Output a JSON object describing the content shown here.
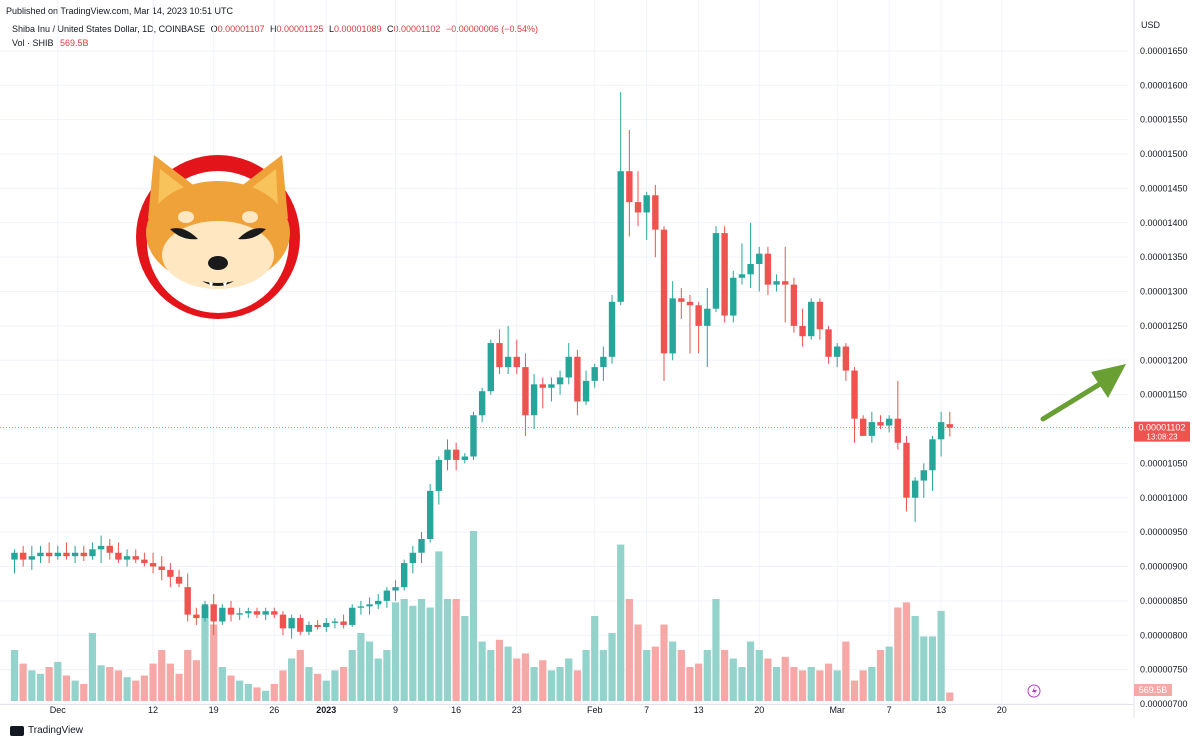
{
  "header": {
    "published": "Published on TradingView.com, Mar 14, 2023 10:51 UTC",
    "symbol": "Shiba Inu / United States Dollar, 1D, COINBASE",
    "o_label": "O",
    "o_value": "0.00001107",
    "h_label": "H",
    "h_value": "0.00001125",
    "l_label": "L",
    "l_value": "0.00001089",
    "c_label": "C",
    "c_value": "0.00001102",
    "change": "−0.00000006 (−0.54%)",
    "vol_label": "Vol · SHIB",
    "vol_value": "569.5B",
    "currency": "USD"
  },
  "footer": {
    "brand": "TradingView"
  },
  "price_tag": {
    "value": "0.00001102",
    "countdown": "13:08:23"
  },
  "vol_tag": {
    "value": "569.5B"
  },
  "colors": {
    "up": "#26a69a",
    "down": "#ef5350",
    "vol_up": "#94d3cc",
    "vol_down": "#f5a8a6",
    "arrow": "#6a9f34"
  },
  "logo": {
    "name": "shiba-inu-logo"
  },
  "chart_data": {
    "type": "candlestick",
    "ylim": [
      7e-06,
      1.66e-05
    ],
    "y_ticks": [
      "0.00000700",
      "0.00000750",
      "0.00000800",
      "0.00000850",
      "0.00000900",
      "0.00000950",
      "0.00001000",
      "0.00001050",
      "0.00001100",
      "0.00001150",
      "0.00001200",
      "0.00001250",
      "0.00001300",
      "0.00001350",
      "0.00001400",
      "0.00001450",
      "0.00001500",
      "0.00001550",
      "0.00001600",
      "0.00001650"
    ],
    "x_ticks": [
      {
        "label": "Dec",
        "i": 5
      },
      {
        "label": "12",
        "i": 16
      },
      {
        "label": "19",
        "i": 23
      },
      {
        "label": "26",
        "i": 30
      },
      {
        "label": "2023",
        "i": 36
      },
      {
        "label": "9",
        "i": 44
      },
      {
        "label": "16",
        "i": 51
      },
      {
        "label": "23",
        "i": 58
      },
      {
        "label": "Feb",
        "i": 67
      },
      {
        "label": "7",
        "i": 73
      },
      {
        "label": "13",
        "i": 79
      },
      {
        "label": "20",
        "i": 86
      },
      {
        "label": "Mar",
        "i": 95
      },
      {
        "label": "7",
        "i": 101
      },
      {
        "label": "13",
        "i": 107
      },
      {
        "label": "20",
        "i": 114
      }
    ],
    "candles": [
      [
        9.1e-06,
        9.25e-06,
        8.9e-06,
        9.2e-06,
        0.3
      ],
      [
        9.2e-06,
        9.3e-06,
        9e-06,
        9.1e-06,
        0.22
      ],
      [
        9.1e-06,
        9.3e-06,
        8.95e-06,
        9.15e-06,
        0.18
      ],
      [
        9.15e-06,
        9.3e-06,
        9.05e-06,
        9.2e-06,
        0.16
      ],
      [
        9.2e-06,
        9.35e-06,
        9.05e-06,
        9.15e-06,
        0.2
      ],
      [
        9.15e-06,
        9.3e-06,
        9.1e-06,
        9.2e-06,
        0.23
      ],
      [
        9.2e-06,
        9.35e-06,
        9.1e-06,
        9.15e-06,
        0.15
      ],
      [
        9.15e-06,
        9.3e-06,
        9.05e-06,
        9.2e-06,
        0.12
      ],
      [
        9.2e-06,
        9.3e-06,
        9.08e-06,
        9.15e-06,
        0.1
      ],
      [
        9.15e-06,
        9.35e-06,
        9.1e-06,
        9.25e-06,
        0.4
      ],
      [
        9.25e-06,
        9.45e-06,
        9.05e-06,
        9.3e-06,
        0.21
      ],
      [
        9.3e-06,
        9.4e-06,
        9.1e-06,
        9.2e-06,
        0.2
      ],
      [
        9.2e-06,
        9.35e-06,
        9.05e-06,
        9.1e-06,
        0.18
      ],
      [
        9.1e-06,
        9.25e-06,
        9e-06,
        9.15e-06,
        0.14
      ],
      [
        9.15e-06,
        9.25e-06,
        9.05e-06,
        9.1e-06,
        0.12
      ],
      [
        9.1e-06,
        9.2e-06,
        9e-06,
        9.05e-06,
        0.15
      ],
      [
        9.05e-06,
        9.2e-06,
        8.9e-06,
        9e-06,
        0.22
      ],
      [
        9e-06,
        9.15e-06,
        8.8e-06,
        8.95e-06,
        0.3
      ],
      [
        8.95e-06,
        9.05e-06,
        8.7e-06,
        8.85e-06,
        0.22
      ],
      [
        8.85e-06,
        8.95e-06,
        8.7e-06,
        8.75e-06,
        0.16
      ],
      [
        8.7e-06,
        8.9e-06,
        8.2e-06,
        8.3e-06,
        0.3
      ],
      [
        8.3e-06,
        8.4e-06,
        8.15e-06,
        8.25e-06,
        0.24
      ],
      [
        8.25e-06,
        8.5e-06,
        8.2e-06,
        8.45e-06,
        0.56
      ],
      [
        8.45e-06,
        8.6e-06,
        8e-06,
        8.2e-06,
        0.45
      ],
      [
        8.2e-06,
        8.45e-06,
        8.15e-06,
        8.4e-06,
        0.2
      ],
      [
        8.4e-06,
        8.5e-06,
        8.2e-06,
        8.3e-06,
        0.15
      ],
      [
        8.3e-06,
        8.4e-06,
        8.22e-06,
        8.32e-06,
        0.12
      ],
      [
        8.32e-06,
        8.4e-06,
        8.25e-06,
        8.35e-06,
        0.1
      ],
      [
        8.35e-06,
        8.4e-06,
        8.25e-06,
        8.3e-06,
        0.08
      ],
      [
        8.3e-06,
        8.4e-06,
        8.22e-06,
        8.35e-06,
        0.06
      ],
      [
        8.35e-06,
        8.4e-06,
        8.25e-06,
        8.3e-06,
        0.1
      ],
      [
        8.3e-06,
        8.35e-06,
        8e-06,
        8.1e-06,
        0.18
      ],
      [
        8.1e-06,
        8.3e-06,
        7.95e-06,
        8.25e-06,
        0.25
      ],
      [
        8.25e-06,
        8.3e-06,
        8e-06,
        8.05e-06,
        0.3
      ],
      [
        8.05e-06,
        8.2e-06,
        8e-06,
        8.15e-06,
        0.2
      ],
      [
        8.15e-06,
        8.22e-06,
        8.08e-06,
        8.12e-06,
        0.16
      ],
      [
        8.12e-06,
        8.25e-06,
        8.05e-06,
        8.18e-06,
        0.12
      ],
      [
        8.18e-06,
        8.25e-06,
        8.1e-06,
        8.2e-06,
        0.18
      ],
      [
        8.2e-06,
        8.3e-06,
        8.1e-06,
        8.15e-06,
        0.2
      ],
      [
        8.15e-06,
        8.45e-06,
        8.12e-06,
        8.4e-06,
        0.3
      ],
      [
        8.4e-06,
        8.5e-06,
        8.3e-06,
        8.42e-06,
        0.4
      ],
      [
        8.42e-06,
        8.55e-06,
        8.3e-06,
        8.45e-06,
        0.35
      ],
      [
        8.45e-06,
        8.6e-06,
        8.38e-06,
        8.5e-06,
        0.25
      ],
      [
        8.5e-06,
        8.7e-06,
        8.4e-06,
        8.65e-06,
        0.3
      ],
      [
        8.65e-06,
        8.8e-06,
        8.5e-06,
        8.7e-06,
        0.58
      ],
      [
        8.7e-06,
        9.1e-06,
        8.65e-06,
        9.05e-06,
        0.6
      ],
      [
        9.05e-06,
        9.3e-06,
        8.9e-06,
        9.2e-06,
        0.56
      ],
      [
        9.2e-06,
        9.5e-06,
        9.05e-06,
        9.4e-06,
        0.6
      ],
      [
        9.4e-06,
        1.02e-05,
        9.35e-06,
        1.01e-05,
        0.55
      ],
      [
        1.01e-05,
        1.06e-05,
        9.9e-06,
        1.055e-05,
        0.88
      ],
      [
        1.055e-05,
        1.085e-05,
        1.04e-05,
        1.07e-05,
        0.6
      ],
      [
        1.07e-05,
        1.08e-05,
        1.04e-05,
        1.055e-05,
        0.6
      ],
      [
        1.055e-05,
        1.065e-05,
        1.05e-05,
        1.06e-05,
        0.5
      ],
      [
        1.06e-05,
        1.125e-05,
        1.055e-05,
        1.12e-05,
        1.0
      ],
      [
        1.12e-05,
        1.16e-05,
        1.11e-05,
        1.155e-05,
        0.35
      ],
      [
        1.155e-05,
        1.23e-05,
        1.15e-05,
        1.225e-05,
        0.3
      ],
      [
        1.225e-05,
        1.245e-05,
        1.18e-05,
        1.19e-05,
        0.36
      ],
      [
        1.19e-05,
        1.25e-05,
        1.18e-05,
        1.205e-05,
        0.32
      ],
      [
        1.205e-05,
        1.23e-05,
        1.18e-05,
        1.19e-05,
        0.25
      ],
      [
        1.19e-05,
        1.21e-05,
        1.09e-05,
        1.12e-05,
        0.28
      ],
      [
        1.12e-05,
        1.18e-05,
        1.1e-05,
        1.165e-05,
        0.2
      ],
      [
        1.165e-05,
        1.175e-05,
        1.13e-05,
        1.16e-05,
        0.24
      ],
      [
        1.16e-05,
        1.175e-05,
        1.14e-05,
        1.165e-05,
        0.18
      ],
      [
        1.165e-05,
        1.185e-05,
        1.15e-05,
        1.175e-05,
        0.2
      ],
      [
        1.175e-05,
        1.225e-05,
        1.165e-05,
        1.205e-05,
        0.25
      ],
      [
        1.205e-05,
        1.215e-05,
        1.12e-05,
        1.14e-05,
        0.18
      ],
      [
        1.14e-05,
        1.185e-05,
        1.135e-05,
        1.17e-05,
        0.3
      ],
      [
        1.17e-05,
        1.195e-05,
        1.16e-05,
        1.19e-05,
        0.5
      ],
      [
        1.19e-05,
        1.22e-05,
        1.17e-05,
        1.205e-05,
        0.3
      ],
      [
        1.205e-05,
        1.295e-05,
        1.195e-05,
        1.285e-05,
        0.4
      ],
      [
        1.285e-05,
        1.59e-05,
        1.28e-05,
        1.475e-05,
        0.92
      ],
      [
        1.475e-05,
        1.535e-05,
        1.38e-05,
        1.43e-05,
        0.6
      ],
      [
        1.43e-05,
        1.475e-05,
        1.395e-05,
        1.415e-05,
        0.45
      ],
      [
        1.415e-05,
        1.445e-05,
        1.375e-05,
        1.44e-05,
        0.3
      ],
      [
        1.44e-05,
        1.455e-05,
        1.35e-05,
        1.39e-05,
        0.32
      ],
      [
        1.39e-05,
        1.395e-05,
        1.17e-05,
        1.21e-05,
        0.45
      ],
      [
        1.21e-05,
        1.315e-05,
        1.2e-05,
        1.29e-05,
        0.35
      ],
      [
        1.29e-05,
        1.305e-05,
        1.26e-05,
        1.285e-05,
        0.3
      ],
      [
        1.285e-05,
        1.295e-05,
        1.21e-05,
        1.28e-05,
        0.2
      ],
      [
        1.28e-05,
        1.285e-05,
        1.21e-05,
        1.25e-05,
        0.22
      ],
      [
        1.25e-05,
        1.305e-05,
        1.19e-05,
        1.275e-05,
        0.3
      ],
      [
        1.275e-05,
        1.395e-05,
        1.27e-05,
        1.385e-05,
        0.6
      ],
      [
        1.385e-05,
        1.395e-05,
        1.255e-05,
        1.265e-05,
        0.3
      ],
      [
        1.265e-05,
        1.33e-05,
        1.255e-05,
        1.32e-05,
        0.25
      ],
      [
        1.32e-05,
        1.37e-05,
        1.31e-05,
        1.325e-05,
        0.2
      ],
      [
        1.325e-05,
        1.4e-05,
        1.305e-05,
        1.34e-05,
        0.35
      ],
      [
        1.34e-05,
        1.365e-05,
        1.3e-05,
        1.355e-05,
        0.3
      ],
      [
        1.355e-05,
        1.365e-05,
        1.295e-05,
        1.31e-05,
        0.25
      ],
      [
        1.31e-05,
        1.325e-05,
        1.3e-05,
        1.315e-05,
        0.2
      ],
      [
        1.315e-05,
        1.365e-05,
        1.255e-05,
        1.31e-05,
        0.26
      ],
      [
        1.31e-05,
        1.32e-05,
        1.24e-05,
        1.25e-05,
        0.2
      ],
      [
        1.25e-05,
        1.275e-05,
        1.22e-05,
        1.235e-05,
        0.18
      ],
      [
        1.235e-05,
        1.29e-05,
        1.23e-05,
        1.285e-05,
        0.2
      ],
      [
        1.285e-05,
        1.29e-05,
        1.23e-05,
        1.245e-05,
        0.18
      ],
      [
        1.245e-05,
        1.25e-05,
        1.195e-05,
        1.205e-05,
        0.22
      ],
      [
        1.205e-05,
        1.225e-05,
        1.19e-05,
        1.22e-05,
        0.18
      ],
      [
        1.22e-05,
        1.225e-05,
        1.17e-05,
        1.185e-05,
        0.35
      ],
      [
        1.185e-05,
        1.19e-05,
        1.08e-05,
        1.115e-05,
        0.12
      ],
      [
        1.115e-05,
        1.12e-05,
        1.09e-05,
        1.09e-05,
        0.18
      ],
      [
        1.09e-05,
        1.125e-05,
        1.08e-05,
        1.11e-05,
        0.2
      ],
      [
        1.11e-05,
        1.12e-05,
        1.1e-05,
        1.105e-05,
        0.3
      ],
      [
        1.105e-05,
        1.12e-05,
        1.095e-05,
        1.115e-05,
        0.32
      ],
      [
        1.115e-05,
        1.17e-05,
        1.07e-05,
        1.08e-05,
        0.55
      ],
      [
        1.08e-05,
        1.09e-05,
        9.8e-06,
        1e-05,
        0.58
      ],
      [
        1e-05,
        1.03e-05,
        9.65e-06,
        1.025e-05,
        0.5
      ],
      [
        1.025e-05,
        1.05e-05,
        1e-05,
        1.04e-05,
        0.38
      ],
      [
        1.04e-05,
        1.09e-05,
        1.01e-05,
        1.085e-05,
        0.38
      ],
      [
        1.085e-05,
        1.125e-05,
        1.06e-05,
        1.11e-05,
        0.53
      ],
      [
        1.107e-05,
        1.125e-05,
        1.089e-05,
        1.102e-05,
        0.05
      ]
    ]
  }
}
